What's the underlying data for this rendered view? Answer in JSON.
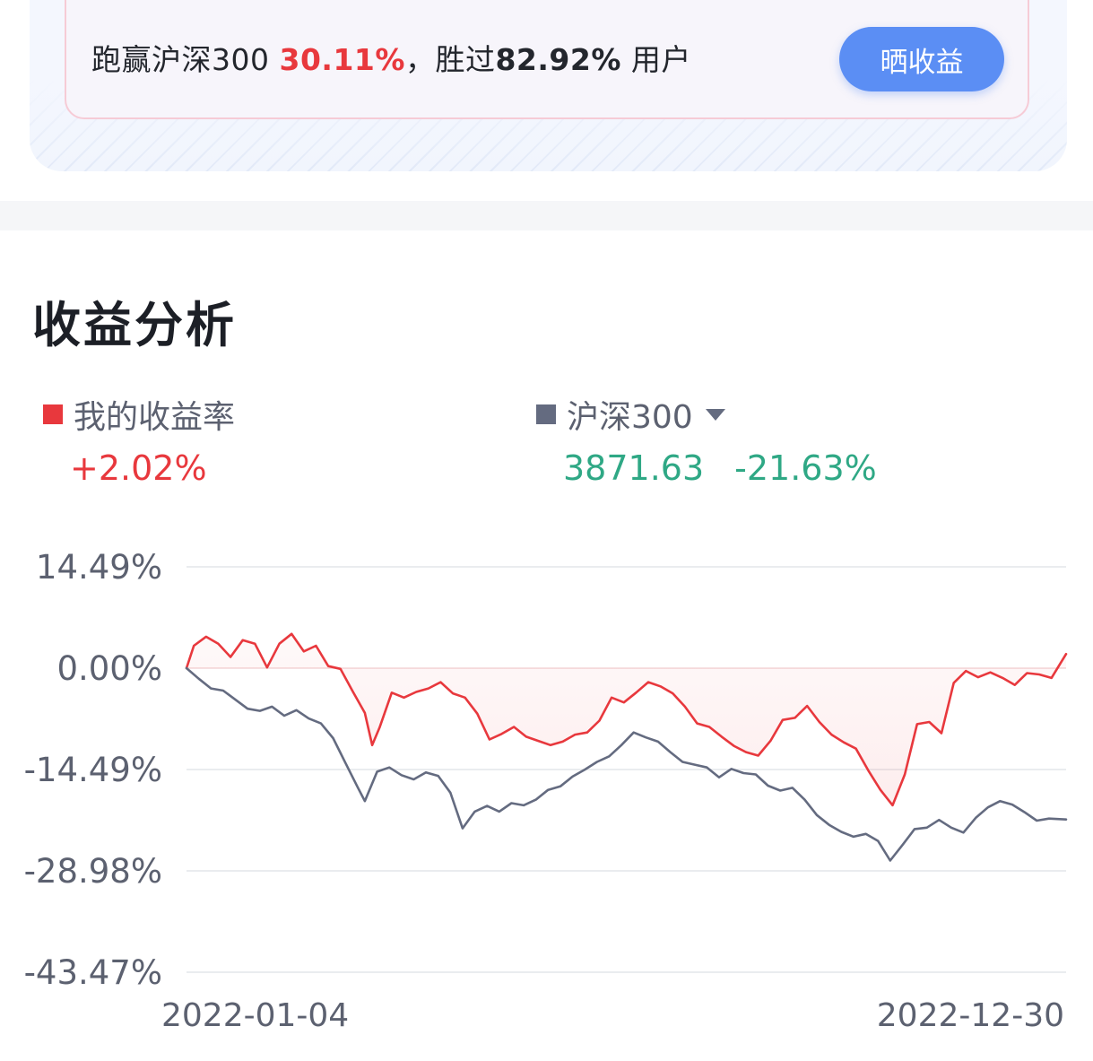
{
  "beat_banner": {
    "prefix": "跑赢沪深300 ",
    "beat_pct": "30.11%",
    "middle": "，胜过",
    "users_pct": "82.92%",
    "suffix": " 用户",
    "share_label": "晒收益"
  },
  "analysis": {
    "title": "收益分析",
    "mine_label": "我的收益率",
    "mine_value": "+2.02%",
    "index_label": "沪深300",
    "index_price": "3871.63",
    "index_change": "-21.63%"
  },
  "colors": {
    "mine": "#e8383d",
    "index": "#646b80",
    "index_value": "#2fa885",
    "accent": "#5b8ef4"
  },
  "chart_data": {
    "type": "line",
    "y_tick_labels": [
      "14.49%",
      "0.00%",
      "-14.49%",
      "-28.98%",
      "-43.47%"
    ],
    "y_ticks": [
      14.49,
      0,
      -14.49,
      -28.98,
      -43.47
    ],
    "ylim": [
      -43.47,
      14.49
    ],
    "x_tick_labels": [
      "2022-01-04",
      "2022-12-30"
    ],
    "xlim": [
      "2022-01-04",
      "2022-12-30"
    ],
    "grid": true,
    "series": [
      {
        "name": "我的收益率",
        "area_fill": true,
        "points": [
          [
            "2022-01-04",
            0
          ],
          [
            "2022-01-07",
            3.2
          ],
          [
            "2022-01-12",
            4.5
          ],
          [
            "2022-01-17",
            3.5
          ],
          [
            "2022-01-22",
            1.6
          ],
          [
            "2022-01-27",
            4
          ],
          [
            "2022-02-01",
            3.5
          ],
          [
            "2022-02-06",
            0.1
          ],
          [
            "2022-02-11",
            3.5
          ],
          [
            "2022-02-16",
            4.9
          ],
          [
            "2022-02-21",
            2.4
          ],
          [
            "2022-02-26",
            3.2
          ],
          [
            "2022-03-03",
            0.3
          ],
          [
            "2022-03-08",
            -0.1
          ],
          [
            "2022-03-13",
            -3.3
          ],
          [
            "2022-03-18",
            -6.4
          ],
          [
            "2022-03-21",
            -11
          ],
          [
            "2022-03-24",
            -8.5
          ],
          [
            "2022-03-29",
            -3.5
          ],
          [
            "2022-04-03",
            -4.2
          ],
          [
            "2022-04-08",
            -3.4
          ],
          [
            "2022-04-13",
            -2.9
          ],
          [
            "2022-04-18",
            -2
          ],
          [
            "2022-04-23",
            -3.6
          ],
          [
            "2022-04-28",
            -4.2
          ],
          [
            "2022-05-03",
            -6.5
          ],
          [
            "2022-05-08",
            -10.2
          ],
          [
            "2022-05-13",
            -9.4
          ],
          [
            "2022-05-18",
            -8.4
          ],
          [
            "2022-05-23",
            -9.8
          ],
          [
            "2022-05-28",
            -10.4
          ],
          [
            "2022-06-02",
            -11
          ],
          [
            "2022-06-07",
            -10.5
          ],
          [
            "2022-06-12",
            -9.5
          ],
          [
            "2022-06-17",
            -9.2
          ],
          [
            "2022-06-22",
            -7.5
          ],
          [
            "2022-06-27",
            -4.2
          ],
          [
            "2022-07-02",
            -4.9
          ],
          [
            "2022-07-07",
            -3.5
          ],
          [
            "2022-07-12",
            -2
          ],
          [
            "2022-07-17",
            -2.6
          ],
          [
            "2022-07-22",
            -3.6
          ],
          [
            "2022-07-27",
            -5.5
          ],
          [
            "2022-08-01",
            -7.9
          ],
          [
            "2022-08-06",
            -8.4
          ],
          [
            "2022-08-11",
            -9.8
          ],
          [
            "2022-08-16",
            -11.1
          ],
          [
            "2022-08-21",
            -12
          ],
          [
            "2022-08-26",
            -12.5
          ],
          [
            "2022-08-31",
            -10.4
          ],
          [
            "2022-09-05",
            -7.4
          ],
          [
            "2022-09-10",
            -7.1
          ],
          [
            "2022-09-15",
            -5.4
          ],
          [
            "2022-09-20",
            -7.7
          ],
          [
            "2022-09-25",
            -9.5
          ],
          [
            "2022-09-30",
            -10.6
          ],
          [
            "2022-10-05",
            -11.5
          ],
          [
            "2022-10-10",
            -14.6
          ],
          [
            "2022-10-15",
            -17.4
          ],
          [
            "2022-10-20",
            -19.6
          ],
          [
            "2022-10-25",
            -15.2
          ],
          [
            "2022-10-30",
            -8
          ],
          [
            "2022-11-04",
            -7.7
          ],
          [
            "2022-11-09",
            -9.3
          ],
          [
            "2022-11-14",
            -2.1
          ],
          [
            "2022-11-19",
            -0.4
          ],
          [
            "2022-11-24",
            -1.3
          ],
          [
            "2022-11-29",
            -0.6
          ],
          [
            "2022-12-04",
            -1.4
          ],
          [
            "2022-12-09",
            -2.4
          ],
          [
            "2022-12-14",
            -0.7
          ],
          [
            "2022-12-19",
            -0.9
          ],
          [
            "2022-12-24",
            -1.4
          ],
          [
            "2022-12-30",
            2.02
          ]
        ]
      },
      {
        "name": "沪深300",
        "area_fill": false,
        "points": [
          [
            "2022-01-04",
            0
          ],
          [
            "2022-01-09",
            -1.5
          ],
          [
            "2022-01-14",
            -2.9
          ],
          [
            "2022-01-19",
            -3.2
          ],
          [
            "2022-01-24",
            -4.5
          ],
          [
            "2022-01-29",
            -5.8
          ],
          [
            "2022-02-03",
            -6.1
          ],
          [
            "2022-02-08",
            -5.5
          ],
          [
            "2022-02-13",
            -6.8
          ],
          [
            "2022-02-18",
            -6
          ],
          [
            "2022-02-23",
            -7.2
          ],
          [
            "2022-02-28",
            -7.9
          ],
          [
            "2022-03-05",
            -10
          ],
          [
            "2022-03-10",
            -13.5
          ],
          [
            "2022-03-15",
            -17
          ],
          [
            "2022-03-18",
            -19
          ],
          [
            "2022-03-23",
            -14.8
          ],
          [
            "2022-03-28",
            -14.2
          ],
          [
            "2022-04-02",
            -15.3
          ],
          [
            "2022-04-07",
            -15.9
          ],
          [
            "2022-04-12",
            -14.9
          ],
          [
            "2022-04-17",
            -15.4
          ],
          [
            "2022-04-22",
            -17.8
          ],
          [
            "2022-04-27",
            -22.9
          ],
          [
            "2022-05-02",
            -20.5
          ],
          [
            "2022-05-07",
            -19.7
          ],
          [
            "2022-05-12",
            -20.5
          ],
          [
            "2022-05-17",
            -19.3
          ],
          [
            "2022-05-22",
            -19.6
          ],
          [
            "2022-05-27",
            -18.8
          ],
          [
            "2022-06-01",
            -17.4
          ],
          [
            "2022-06-06",
            -16.9
          ],
          [
            "2022-06-11",
            -15.5
          ],
          [
            "2022-06-16",
            -14.5
          ],
          [
            "2022-06-21",
            -13.4
          ],
          [
            "2022-06-26",
            -12.6
          ],
          [
            "2022-07-01",
            -11
          ],
          [
            "2022-07-06",
            -9.2
          ],
          [
            "2022-07-11",
            -9.9
          ],
          [
            "2022-07-16",
            -10.5
          ],
          [
            "2022-07-21",
            -12
          ],
          [
            "2022-07-26",
            -13.4
          ],
          [
            "2022-07-31",
            -13.8
          ],
          [
            "2022-08-05",
            -14.2
          ],
          [
            "2022-08-10",
            -15.6
          ],
          [
            "2022-08-15",
            -14.4
          ],
          [
            "2022-08-20",
            -15
          ],
          [
            "2022-08-25",
            -15.2
          ],
          [
            "2022-08-30",
            -16.8
          ],
          [
            "2022-09-04",
            -17.5
          ],
          [
            "2022-09-09",
            -17.1
          ],
          [
            "2022-09-14",
            -18.8
          ],
          [
            "2022-09-19",
            -21
          ],
          [
            "2022-09-24",
            -22.4
          ],
          [
            "2022-09-29",
            -23.4
          ],
          [
            "2022-10-04",
            -24.1
          ],
          [
            "2022-10-09",
            -23.7
          ],
          [
            "2022-10-14",
            -24.7
          ],
          [
            "2022-10-19",
            -27.5
          ],
          [
            "2022-10-24",
            -25.3
          ],
          [
            "2022-10-29",
            -23
          ],
          [
            "2022-11-03",
            -22.8
          ],
          [
            "2022-11-08",
            -21.7
          ],
          [
            "2022-11-13",
            -22.8
          ],
          [
            "2022-11-18",
            -23.5
          ],
          [
            "2022-11-23",
            -21.4
          ],
          [
            "2022-11-28",
            -19.9
          ],
          [
            "2022-12-03",
            -19
          ],
          [
            "2022-12-08",
            -19.5
          ],
          [
            "2022-12-13",
            -20.6
          ],
          [
            "2022-12-18",
            -21.8
          ],
          [
            "2022-12-23",
            -21.5
          ],
          [
            "2022-12-30",
            -21.63
          ]
        ]
      }
    ]
  }
}
